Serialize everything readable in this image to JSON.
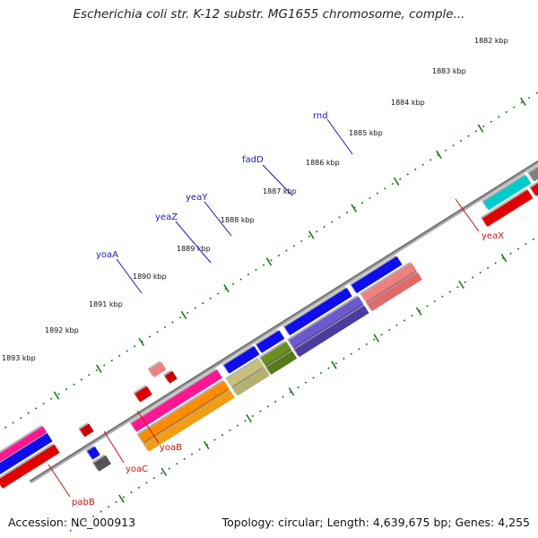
{
  "title": "Escherichia coli str. K-12 substr. MG1655 chromosome, comple...",
  "accession": "Accession: NC_000913",
  "summary": "Topology: circular; Length: 4,639,675 bp; Genes: 4,255",
  "kbp_ticks": [
    "1882 kbp",
    "1883 kbp",
    "1884 kbp",
    "1885 kbp",
    "1886 kbp",
    "1887 kbp",
    "1888 kbp",
    "1889 kbp",
    "1890 kbp",
    "1891 kbp",
    "1892 kbp",
    "1893 kbp"
  ],
  "gene_labels_forward": [
    "rnd",
    "fadD",
    "yeaY",
    "yeaZ",
    "yoaA"
  ],
  "gene_labels_reverse": [
    "yeaX",
    "yoaB",
    "yoaC",
    "pabB"
  ],
  "colors": {
    "forward_label": "#1a1ab8",
    "reverse_label": "#cc1111",
    "tick": "#1f7a1f",
    "backbone": "#777777"
  }
}
